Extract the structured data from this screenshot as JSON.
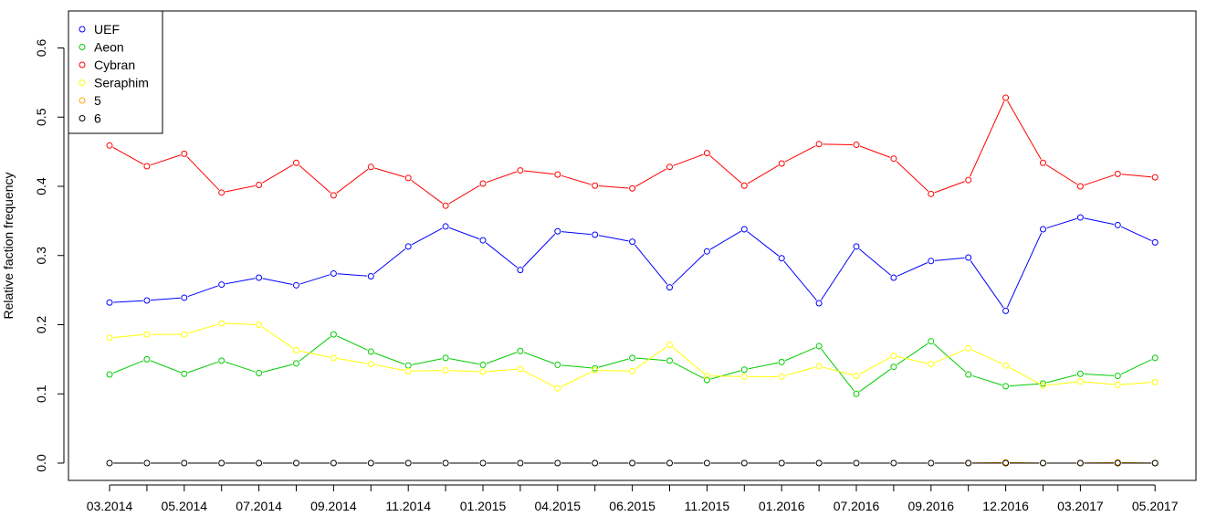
{
  "chart_data": {
    "type": "line",
    "ylabel": "Relative faction frequency",
    "xlabel": "",
    "ylim": [
      0.0,
      0.6
    ],
    "yticks": [
      "0.0",
      "0.1",
      "0.2",
      "0.3",
      "0.4",
      "0.5",
      "0.6"
    ],
    "x_tick_labels": [
      "03.2014",
      "05.2014",
      "07.2014",
      "09.2014",
      "11.2014",
      "01.2015",
      "04.2015",
      "06.2015",
      "11.2015",
      "01.2016",
      "07.2016",
      "09.2016",
      "12.2016",
      "03.2017",
      "05.2017"
    ],
    "x_tick_index": [
      0,
      2,
      4,
      6,
      8,
      10,
      12,
      14,
      16,
      18,
      20,
      22,
      24,
      26,
      28
    ],
    "n_points": 29,
    "legend": {
      "placement": "top-left",
      "entries": [
        "UEF",
        "Aeon",
        "Cybran",
        "Seraphim",
        "5",
        "6"
      ]
    },
    "series": [
      {
        "name": "UEF",
        "color": "#0000ff",
        "values": [
          0.232,
          0.235,
          0.239,
          0.258,
          0.268,
          0.257,
          0.274,
          0.27,
          0.313,
          0.342,
          0.322,
          0.279,
          0.335,
          0.33,
          0.32,
          0.254,
          0.306,
          0.338,
          0.296,
          0.231,
          0.313,
          0.268,
          0.292,
          0.297,
          0.22,
          0.338,
          0.355,
          0.344,
          0.319
        ]
      },
      {
        "name": "Aeon",
        "color": "#00cd00",
        "values": [
          0.128,
          0.15,
          0.129,
          0.148,
          0.13,
          0.144,
          0.186,
          0.161,
          0.141,
          0.152,
          0.142,
          0.162,
          0.142,
          0.137,
          0.152,
          0.148,
          0.12,
          0.135,
          0.146,
          0.169,
          0.1,
          0.139,
          0.176,
          0.128,
          0.111,
          0.115,
          0.129,
          0.126,
          0.152
        ]
      },
      {
        "name": "Cybran",
        "color": "#ff0000",
        "values": [
          0.459,
          0.429,
          0.447,
          0.391,
          0.402,
          0.434,
          0.387,
          0.428,
          0.412,
          0.372,
          0.404,
          0.423,
          0.417,
          0.401,
          0.397,
          0.428,
          0.448,
          0.401,
          0.433,
          0.461,
          0.46,
          0.44,
          0.389,
          0.409,
          0.528,
          0.434,
          0.4,
          0.418,
          0.413
        ]
      },
      {
        "name": "Seraphim",
        "color": "#ffff00",
        "values": [
          0.181,
          0.186,
          0.186,
          0.202,
          0.2,
          0.163,
          0.152,
          0.143,
          0.133,
          0.134,
          0.132,
          0.136,
          0.108,
          0.134,
          0.133,
          0.171,
          0.126,
          0.125,
          0.125,
          0.14,
          0.126,
          0.155,
          0.143,
          0.166,
          0.141,
          0.112,
          0.118,
          0.113,
          0.117
        ]
      },
      {
        "name": "5",
        "color": "#ffa500",
        "values": [
          null,
          null,
          null,
          null,
          null,
          null,
          null,
          null,
          null,
          null,
          null,
          null,
          null,
          null,
          null,
          null,
          null,
          null,
          null,
          null,
          null,
          null,
          null,
          0.0,
          0.001,
          0.0,
          0.0,
          0.001,
          0.0
        ]
      },
      {
        "name": "6",
        "color": "#000000",
        "values": [
          0.0,
          0.0,
          0.0,
          0.0,
          0.0,
          0.0,
          0.0,
          0.0,
          0.0,
          0.0,
          0.0,
          0.0,
          0.0,
          0.0,
          0.0,
          0.0,
          0.0,
          0.0,
          0.0,
          0.0,
          0.0,
          0.0,
          0.0,
          0.0,
          0.0,
          0.0,
          0.0,
          0.0,
          0.0
        ]
      }
    ]
  }
}
